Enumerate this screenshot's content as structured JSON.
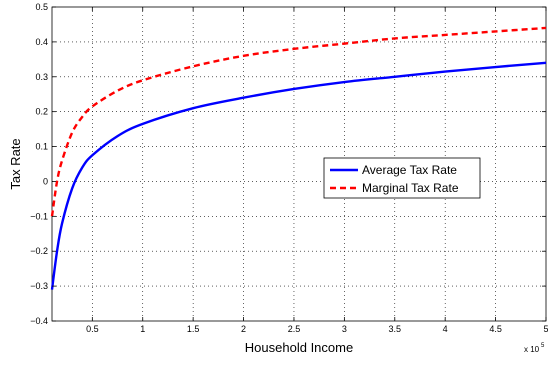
{
  "chart_data": {
    "type": "line",
    "xlabel": "Household Income",
    "ylabel": "Tax Rate",
    "x_scale_label": "x 10",
    "x_scale_exponent": "5",
    "xlim": [
      0.1,
      5
    ],
    "ylim": [
      -0.4,
      0.5
    ],
    "x_ticks": [
      0.5,
      1,
      1.5,
      2,
      2.5,
      3,
      3.5,
      4,
      4.5,
      5
    ],
    "x_tick_labels": [
      "0.5",
      "1",
      "1.5",
      "2",
      "2.5",
      "3",
      "3.5",
      "4",
      "4.5",
      "5"
    ],
    "y_ticks": [
      -0.4,
      -0.3,
      -0.2,
      -0.1,
      0,
      0.1,
      0.2,
      0.3,
      0.4,
      0.5
    ],
    "y_tick_labels": [
      "−0.4",
      "−0.3",
      "−0.2",
      "−0.1",
      "0",
      "0.1",
      "0.2",
      "0.3",
      "0.4",
      "0.5"
    ],
    "grid": true,
    "legend_position": "center-right",
    "series": [
      {
        "name": "Average Tax Rate",
        "color": "#0000ff",
        "style": "solid",
        "x": [
          0.1,
          0.15,
          0.2,
          0.3,
          0.4,
          0.5,
          0.75,
          1.0,
          1.5,
          2.0,
          2.5,
          3.0,
          3.5,
          4.0,
          4.5,
          5.0
        ],
        "y": [
          -0.31,
          -0.2,
          -0.12,
          -0.02,
          0.04,
          0.075,
          0.13,
          0.165,
          0.21,
          0.24,
          0.265,
          0.285,
          0.3,
          0.315,
          0.328,
          0.34
        ]
      },
      {
        "name": "Marginal Tax Rate",
        "color": "#ff0000",
        "style": "dashed",
        "x": [
          0.1,
          0.15,
          0.2,
          0.3,
          0.4,
          0.5,
          0.75,
          1.0,
          1.5,
          2.0,
          2.5,
          3.0,
          3.5,
          4.0,
          4.5,
          5.0
        ],
        "y": [
          -0.1,
          0.0,
          0.06,
          0.14,
          0.185,
          0.215,
          0.26,
          0.29,
          0.33,
          0.36,
          0.38,
          0.395,
          0.41,
          0.42,
          0.43,
          0.44
        ]
      }
    ]
  }
}
